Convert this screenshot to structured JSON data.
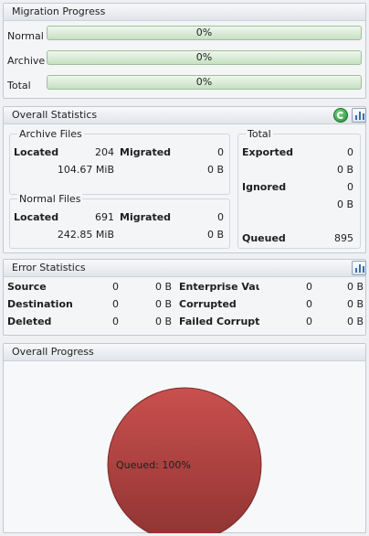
{
  "migration": {
    "title": "Migration Progress",
    "rows": [
      {
        "label": "Normal",
        "percent": 0,
        "text": "0%"
      },
      {
        "label": "Archive",
        "percent": 0,
        "text": "0%"
      },
      {
        "label": "Total",
        "percent": 0,
        "text": "0%"
      }
    ]
  },
  "overall_stats": {
    "title": "Overall Statistics",
    "icons": {
      "refresh": "refresh-icon",
      "report": "report-chart-icon"
    },
    "archive": {
      "title": "Archive Files",
      "located_label": "Located",
      "located_count": "204",
      "located_size": "104.67 MiB",
      "migrated_label": "Migrated",
      "migrated_count": "0",
      "migrated_size": "0 B"
    },
    "normal": {
      "title": "Normal Files",
      "located_label": "Located",
      "located_count": "691",
      "located_size": "242.85 MiB",
      "migrated_label": "Migrated",
      "migrated_count": "0",
      "migrated_size": "0 B"
    },
    "total": {
      "title": "Total",
      "exported_label": "Exported",
      "exported_count": "0",
      "exported_size": "0 B",
      "ignored_label": "Ignored",
      "ignored_count": "0",
      "ignored_size": "0 B",
      "queued_label": "Queued",
      "queued_count": "895"
    }
  },
  "error_stats": {
    "title": "Error Statistics",
    "icons": {
      "report": "report-chart-icon"
    },
    "left": [
      {
        "label": "Source",
        "count": "0",
        "size": "0 B"
      },
      {
        "label": "Destination",
        "count": "0",
        "size": "0 B"
      },
      {
        "label": "Deleted",
        "count": "0",
        "size": "0 B"
      }
    ],
    "right": [
      {
        "label": "Enterprise Vault",
        "count": "0",
        "size": "0 B"
      },
      {
        "label": "Corrupted",
        "count": "0",
        "size": "0 B"
      },
      {
        "label": "Failed Corrupti",
        "count": "0",
        "size": "0 B"
      }
    ]
  },
  "overall_progress": {
    "title": "Overall Progress",
    "chart_data": {
      "type": "pie",
      "slices": [
        {
          "label": "Queued",
          "value": 100,
          "display": "Queued: 100%",
          "color": "#b84a48"
        }
      ]
    }
  }
}
